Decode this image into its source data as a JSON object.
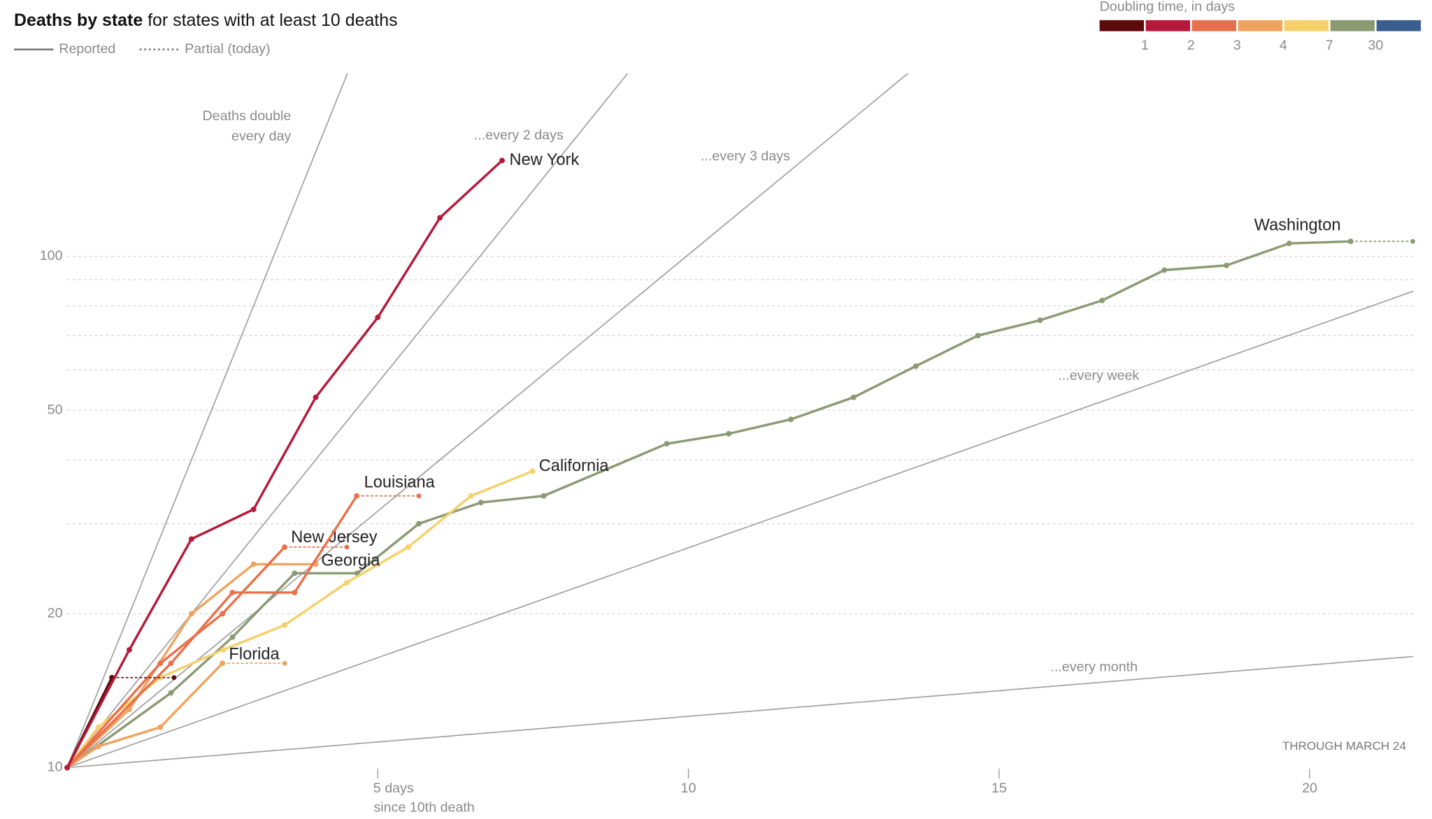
{
  "chart_data": {
    "type": "line",
    "title": "Deaths by state",
    "subtitle": "for states with at least 10 deaths",
    "legend_reported": "Reported",
    "legend_partial": "Partial (today)",
    "doubling_title": "Doubling time, in days",
    "doubling_colors": [
      "#5c0a0a",
      "#b5193a",
      "#e8704b",
      "#f0a35e",
      "#f5d06b",
      "#8a9a72",
      "#3a5f8f"
    ],
    "doubling_ticks": [
      1,
      2,
      3,
      4,
      7,
      30
    ],
    "note": "THROUGH MARCH 24",
    "xlabel": "since 10th death",
    "xlim": [
      0,
      21.67
    ],
    "xticks": [
      {
        "value": 5,
        "label": "5 days"
      },
      10,
      15,
      20
    ],
    "ylim": [
      10,
      228
    ],
    "yticks": [
      10,
      20,
      50,
      100
    ],
    "ygrid": [
      20,
      30,
      40,
      50,
      60,
      70,
      80,
      90,
      100
    ],
    "log_y": true,
    "reference_lines": [
      {
        "label": [
          "Deaths double",
          "every day"
        ],
        "doubling_days": 1
      },
      {
        "label": [
          "...every 2 days"
        ],
        "doubling_days": 2
      },
      {
        "label": [
          "...every 3 days"
        ],
        "doubling_days": 3
      },
      {
        "label": [
          "...every week"
        ],
        "doubling_days": 7
      },
      {
        "label": [
          "...every month"
        ],
        "doubling_days": 30
      }
    ],
    "series": [
      {
        "name": "Washington",
        "color": "#8a9a72",
        "x": [
          0,
          1.67,
          2.66,
          3.66,
          4.67,
          5.66,
          6.66,
          7.67,
          9.65,
          10.65,
          11.65,
          12.66,
          13.66,
          14.66,
          15.66,
          16.66,
          17.66,
          18.66,
          19.67,
          20.66
        ],
        "values": [
          10,
          14,
          18,
          24,
          24,
          30,
          33,
          34,
          43,
          45,
          48,
          53,
          61,
          70,
          75,
          82,
          94,
          96,
          106,
          107
        ],
        "partial_x": 21.66,
        "partial_value": 107
      },
      {
        "name": "California",
        "color": "#f5d06b",
        "x": [
          0,
          0.5,
          1.5,
          2.51,
          3.5,
          4.5,
          5.49,
          6.5,
          7.49
        ],
        "values": [
          10,
          12,
          15,
          17,
          19,
          23,
          27,
          34,
          38
        ]
      },
      {
        "name": "Florida",
        "color": "#f0a35e",
        "x": [
          0,
          0.5,
          1.5,
          2.5
        ],
        "values": [
          10,
          11,
          12,
          16
        ],
        "partial_x": 3.5,
        "partial_value": 16
      },
      {
        "name": "Georgia",
        "color": "#f0a35e",
        "x": [
          0,
          1,
          2,
          3,
          4
        ],
        "values": [
          10,
          13,
          20,
          25,
          25
        ]
      },
      {
        "name": "New Jersey",
        "color": "#e8704b",
        "x": [
          0,
          1.5,
          2.5,
          3.5
        ],
        "values": [
          10,
          16,
          20,
          27
        ],
        "partial_x": 4.5,
        "partial_value": 27
      },
      {
        "name": "Louisiana",
        "color": "#e8704b",
        "x": [
          0,
          1.67,
          2.66,
          3.66,
          4.66
        ],
        "values": [
          10,
          16,
          22,
          22,
          34
        ],
        "partial_x": 5.66,
        "partial_value": 34
      },
      {
        "color": "#5c0a0a",
        "x": [
          0,
          0.72
        ],
        "values": [
          10,
          15
        ],
        "partial_x": 1.72,
        "partial_value": 15
      },
      {
        "name": "New York",
        "color": "#b5193a",
        "x": [
          0,
          1,
          2,
          3,
          4,
          5,
          6,
          7
        ],
        "values": [
          10,
          17,
          28,
          32,
          53,
          76,
          119,
          154
        ]
      }
    ]
  }
}
